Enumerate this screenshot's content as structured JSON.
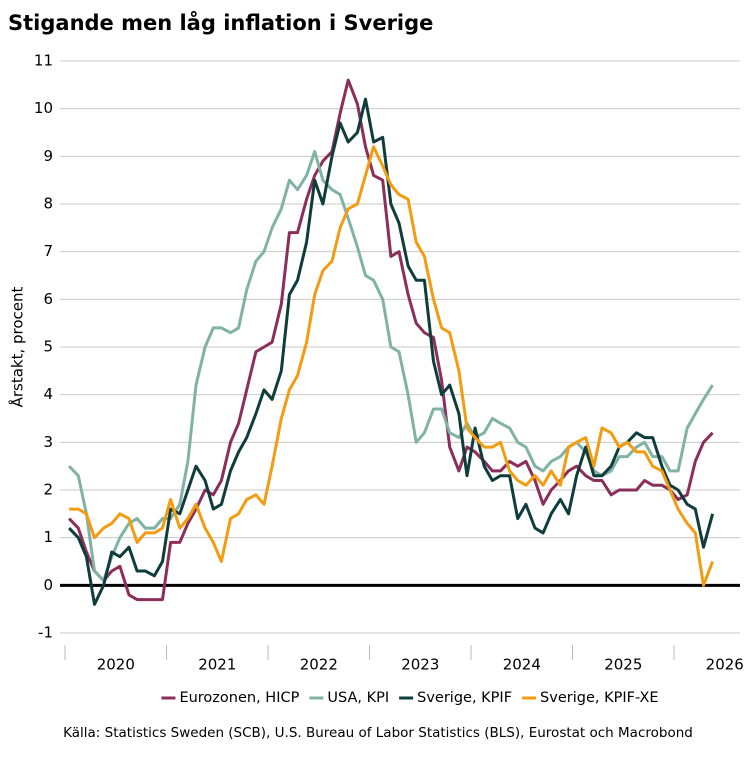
{
  "chart_data": {
    "type": "line",
    "title": "Stigande men låg inflation i Sverige",
    "y_label": "Årstakt, procent",
    "source": "Källa: Statistics Sweden (SCB), U.S. Bureau of Labor Statistics (BLS), Eurostat och Macrobond",
    "x": [
      2020.04,
      2020.13,
      2020.21,
      2020.29,
      2020.38,
      2020.46,
      2020.54,
      2020.63,
      2020.71,
      2020.79,
      2020.88,
      2020.96,
      2021.04,
      2021.13,
      2021.21,
      2021.29,
      2021.38,
      2021.46,
      2021.54,
      2021.63,
      2021.71,
      2021.79,
      2021.88,
      2021.96,
      2022.04,
      2022.13,
      2022.21,
      2022.29,
      2022.38,
      2022.46,
      2022.54,
      2022.63,
      2022.71,
      2022.79,
      2022.88,
      2022.96,
      2023.04,
      2023.13,
      2023.21,
      2023.29,
      2023.38,
      2023.46,
      2023.54,
      2023.63,
      2023.71,
      2023.79,
      2023.88,
      2023.96,
      2024.04,
      2024.13,
      2024.21,
      2024.29,
      2024.38,
      2024.46,
      2024.54,
      2024.63,
      2024.71,
      2024.79,
      2024.88,
      2024.96,
      2025.04,
      2025.13,
      2025.21,
      2025.29,
      2025.38,
      2025.46,
      2025.54,
      2025.63,
      2025.71,
      2025.79,
      2025.88,
      2025.96,
      2026.04,
      2026.13,
      2026.21,
      2026.29,
      2026.38
    ],
    "series": [
      {
        "name": "Eurozonen, HICP",
        "color": "#8b2e5a",
        "values": [
          1.4,
          1.2,
          0.7,
          0.3,
          0.1,
          0.3,
          0.4,
          -0.2,
          -0.3,
          -0.3,
          -0.3,
          -0.3,
          0.9,
          0.9,
          1.3,
          1.6,
          2.0,
          1.9,
          2.2,
          3.0,
          3.4,
          4.1,
          4.9,
          5.0,
          5.1,
          5.9,
          7.4,
          7.4,
          8.1,
          8.6,
          8.9,
          9.1,
          9.9,
          10.6,
          10.1,
          9.2,
          8.6,
          8.5,
          6.9,
          7.0,
          6.1,
          5.5,
          5.3,
          5.2,
          4.3,
          2.9,
          2.4,
          2.9,
          2.8,
          2.6,
          2.4,
          2.4,
          2.6,
          2.5,
          2.6,
          2.2,
          1.7,
          2.0,
          2.2,
          2.4,
          2.5,
          2.3,
          2.2,
          2.2,
          1.9,
          2.0,
          2.0,
          2.0,
          2.2,
          2.1,
          2.1,
          2.0,
          1.8,
          1.9,
          2.6,
          3.0,
          3.2
        ]
      },
      {
        "name": "USA, KPI",
        "color": "#80b3a4",
        "values": [
          2.5,
          2.3,
          1.5,
          0.3,
          0.1,
          0.6,
          1.0,
          1.3,
          1.4,
          1.2,
          1.2,
          1.4,
          1.4,
          1.7,
          2.6,
          4.2,
          5.0,
          5.4,
          5.4,
          5.3,
          5.4,
          6.2,
          6.8,
          7.0,
          7.5,
          7.9,
          8.5,
          8.3,
          8.6,
          9.1,
          8.5,
          8.3,
          8.2,
          7.7,
          7.1,
          6.5,
          6.4,
          6.0,
          5.0,
          4.9,
          4.0,
          3.0,
          3.2,
          3.7,
          3.7,
          3.2,
          3.1,
          3.4,
          3.1,
          3.2,
          3.5,
          3.4,
          3.3,
          3.0,
          2.9,
          2.5,
          2.4,
          2.6,
          2.7,
          2.9,
          3.0,
          2.8,
          2.4,
          2.3,
          2.4,
          2.7,
          2.7,
          2.9,
          3.0,
          2.7,
          2.7,
          2.4,
          2.4,
          3.3,
          3.6,
          3.9,
          4.2
        ]
      },
      {
        "name": "Sverige, KPIF",
        "color": "#0e3d3c",
        "values": [
          1.2,
          1.0,
          0.6,
          -0.4,
          0.0,
          0.7,
          0.6,
          0.8,
          0.3,
          0.3,
          0.2,
          0.5,
          1.6,
          1.5,
          2.0,
          2.5,
          2.2,
          1.6,
          1.7,
          2.4,
          2.8,
          3.1,
          3.6,
          4.1,
          3.9,
          4.5,
          6.1,
          6.4,
          7.2,
          8.5,
          8.0,
          9.0,
          9.7,
          9.3,
          9.5,
          10.2,
          9.3,
          9.4,
          8.0,
          7.6,
          6.7,
          6.4,
          6.4,
          4.7,
          4.0,
          4.2,
          3.6,
          2.3,
          3.3,
          2.5,
          2.2,
          2.3,
          2.3,
          1.4,
          1.7,
          1.2,
          1.1,
          1.5,
          1.8,
          1.5,
          2.3,
          2.9,
          2.3,
          2.3,
          2.5,
          2.9,
          3.0,
          3.2,
          3.1,
          3.1,
          2.5,
          2.1,
          2.0,
          1.7,
          1.6,
          0.8,
          1.5
        ]
      },
      {
        "name": "Sverige, KPIF-XE",
        "color": "#f39c12",
        "values": [
          1.6,
          1.6,
          1.5,
          1.0,
          1.2,
          1.3,
          1.5,
          1.4,
          0.9,
          1.1,
          1.1,
          1.2,
          1.8,
          1.2,
          1.4,
          1.7,
          1.2,
          0.9,
          0.5,
          1.4,
          1.5,
          1.8,
          1.9,
          1.7,
          2.5,
          3.5,
          4.1,
          4.4,
          5.1,
          6.1,
          6.6,
          6.8,
          7.5,
          7.9,
          8.0,
          8.6,
          9.2,
          8.8,
          8.4,
          8.2,
          8.1,
          7.2,
          6.9,
          6.0,
          5.4,
          5.3,
          4.5,
          3.3,
          3.1,
          2.9,
          2.9,
          3.0,
          2.4,
          2.2,
          2.1,
          2.3,
          2.1,
          2.4,
          2.1,
          2.9,
          3.0,
          3.1,
          2.5,
          3.3,
          3.2,
          2.9,
          3.0,
          2.8,
          2.8,
          2.5,
          2.4,
          2.0,
          1.6,
          1.3,
          1.1,
          0.0,
          0.5
        ]
      }
    ],
    "xlim": [
      2019.95,
      2026.65
    ],
    "xticks": [
      2020,
      2021,
      2022,
      2023,
      2024,
      2025,
      2026
    ],
    "ylim": [
      -1,
      11
    ],
    "yticks": [
      -1,
      0,
      1,
      2,
      3,
      4,
      5,
      6,
      7,
      8,
      9,
      10,
      11
    ],
    "grid": true,
    "zero_line": true,
    "legend": "bottom"
  }
}
